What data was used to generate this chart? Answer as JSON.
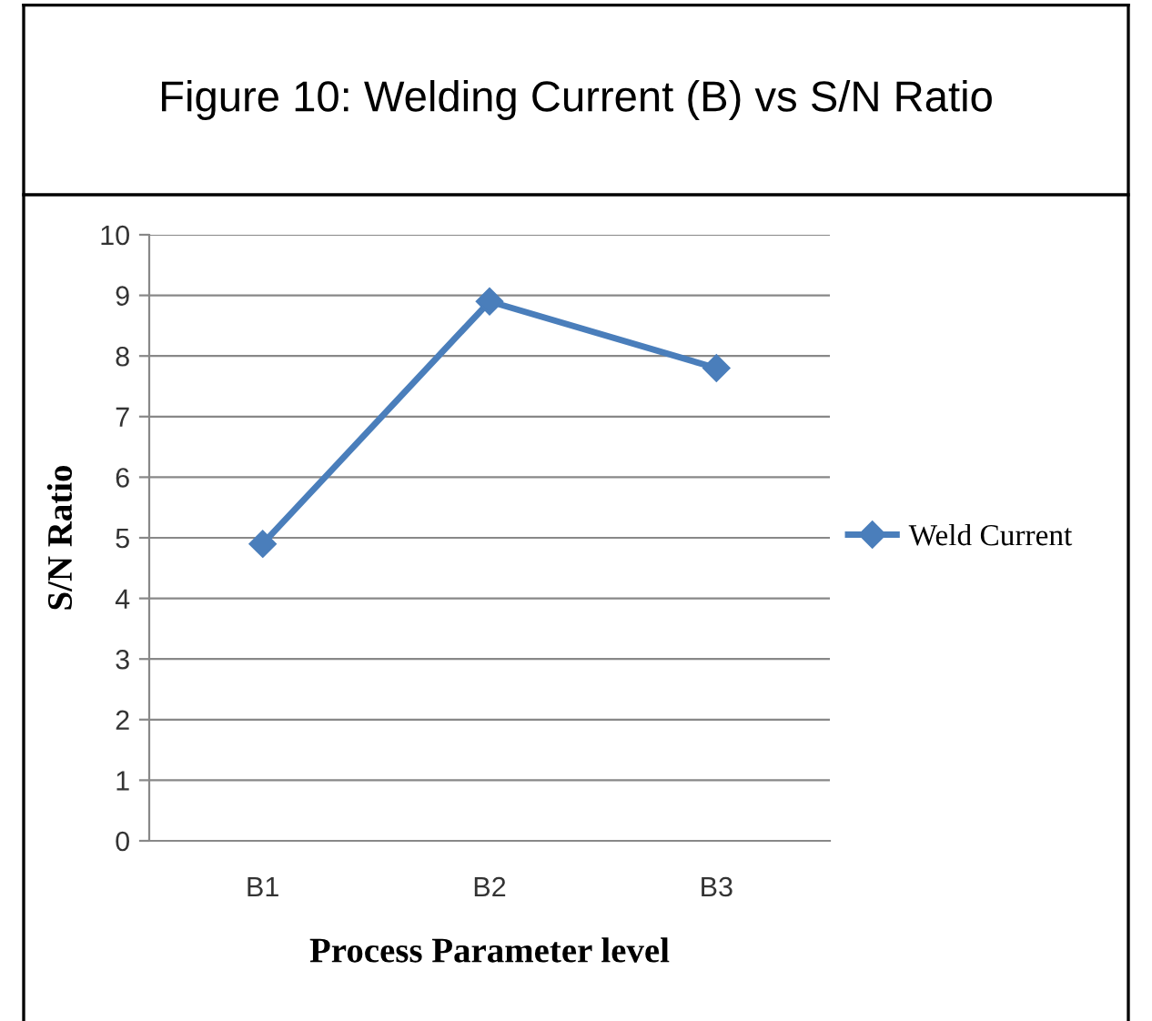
{
  "chart_data": {
    "type": "line",
    "title": "Figure 10: Welding Current (B) vs S/N Ratio",
    "xlabel": "Process Parameter level",
    "ylabel": "S/N Ratio",
    "categories": [
      "B1",
      "B2",
      "B3"
    ],
    "series": [
      {
        "name": "Weld Current",
        "color": "#4a7ebb",
        "values": [
          4.9,
          8.9,
          7.8
        ]
      }
    ],
    "ylim": [
      0,
      10
    ],
    "yticks": [
      0,
      1,
      2,
      3,
      4,
      5,
      6,
      7,
      8,
      9,
      10
    ],
    "grid": "y",
    "legend": "right",
    "marker": "diamond",
    "line_style": "solid"
  }
}
